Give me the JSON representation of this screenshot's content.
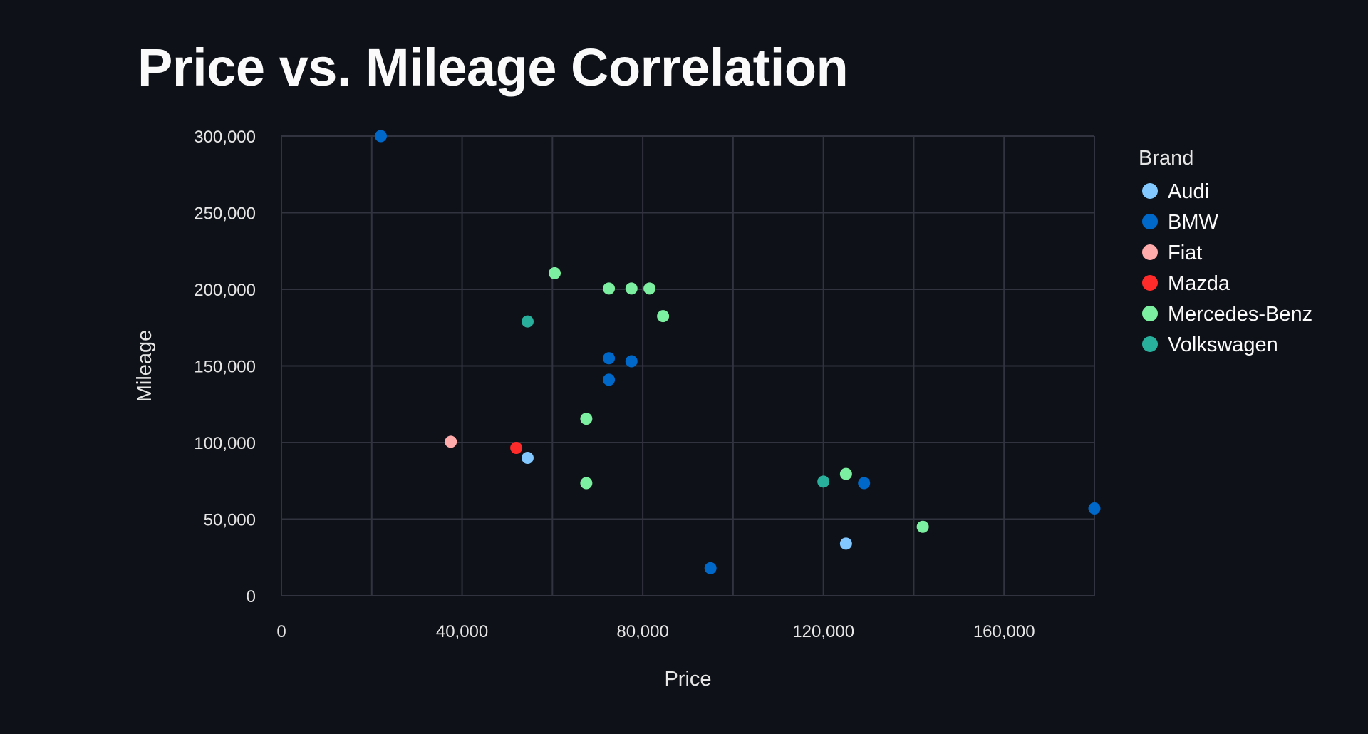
{
  "page": {
    "title": "Price vs. Mileage Correlation"
  },
  "chart_data": {
    "type": "scatter",
    "title": "Price vs. Mileage Correlation",
    "xlabel": "Price",
    "ylabel": "Mileage",
    "xlim": [
      0,
      180000
    ],
    "ylim": [
      0,
      300000
    ],
    "x_ticks": [
      0,
      40000,
      80000,
      120000,
      160000
    ],
    "x_tick_labels": [
      "0",
      "40,000",
      "80,000",
      "120,000",
      "160,000"
    ],
    "y_ticks": [
      0,
      50000,
      100000,
      150000,
      200000,
      250000,
      300000
    ],
    "y_tick_labels": [
      "0",
      "50,000",
      "100,000",
      "150,000",
      "200,000",
      "250,000",
      "300,000"
    ],
    "grid": true,
    "legend": {
      "title": "Brand",
      "placement": "right"
    },
    "series": [
      {
        "name": "Audi",
        "color": "#83c9ff",
        "points": [
          [
            54500,
            90000
          ],
          [
            125000,
            34000
          ]
        ]
      },
      {
        "name": "BMW",
        "color": "#0068c9",
        "points": [
          [
            22000,
            300000
          ],
          [
            72500,
            155000
          ],
          [
            77500,
            153000
          ],
          [
            72500,
            141000
          ],
          [
            95000,
            18000
          ],
          [
            129000,
            73500
          ],
          [
            180000,
            57000
          ]
        ]
      },
      {
        "name": "Fiat",
        "color": "#ffabab",
        "points": [
          [
            37500,
            100500
          ]
        ]
      },
      {
        "name": "Mazda",
        "color": "#ff2b2b",
        "points": [
          [
            52000,
            96500
          ]
        ]
      },
      {
        "name": "Mercedes-Benz",
        "color": "#7defa1",
        "points": [
          [
            60500,
            210500
          ],
          [
            72500,
            200500
          ],
          [
            77500,
            200500
          ],
          [
            81500,
            200500
          ],
          [
            84500,
            182500
          ],
          [
            67500,
            115500
          ],
          [
            67500,
            73500
          ],
          [
            125000,
            79500
          ],
          [
            142000,
            45000
          ]
        ]
      },
      {
        "name": "Volkswagen",
        "color": "#29b09d",
        "points": [
          [
            54500,
            179000
          ],
          [
            120000,
            74500
          ]
        ]
      }
    ]
  }
}
